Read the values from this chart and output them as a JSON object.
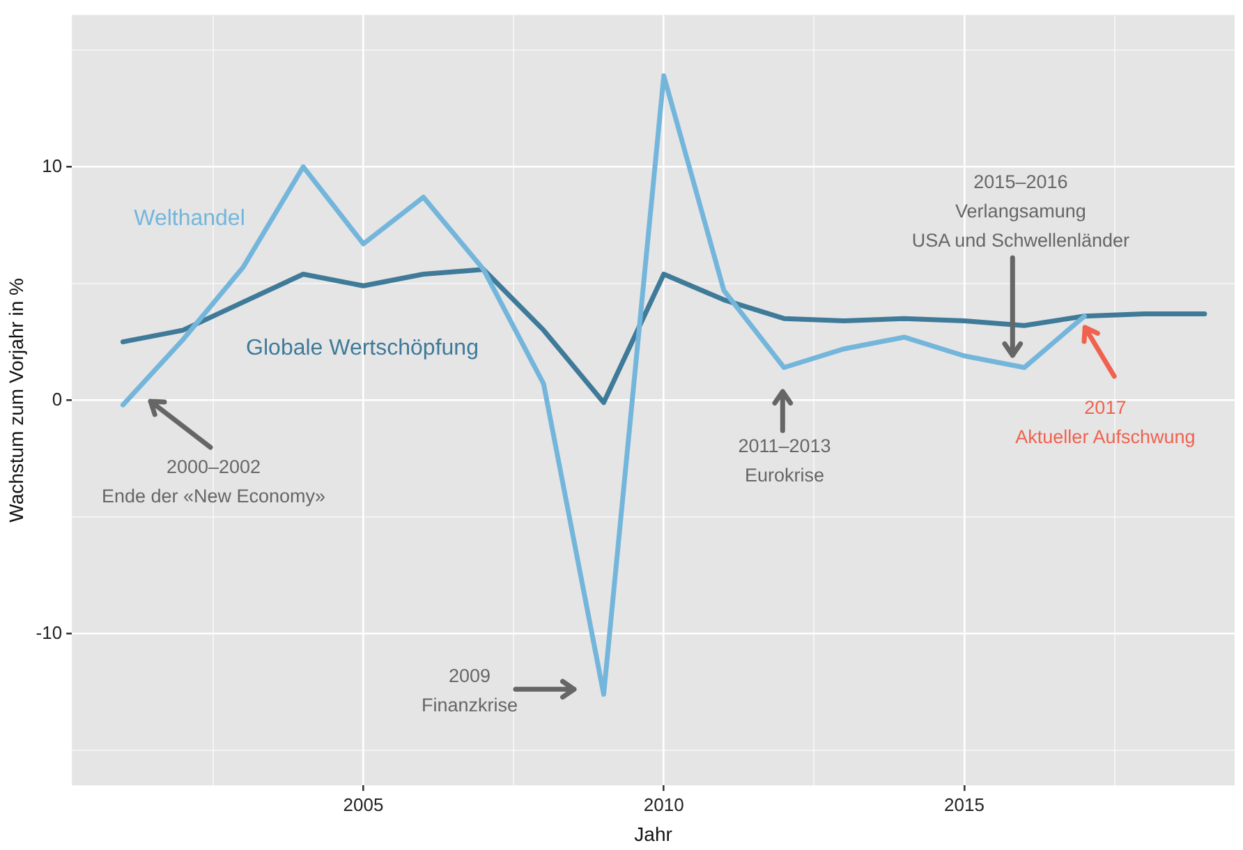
{
  "chart_data": {
    "type": "line",
    "xlabel": "Jahr",
    "ylabel": "Wachstum zum Vorjahr in %",
    "x": [
      2001,
      2002,
      2003,
      2004,
      2005,
      2006,
      2007,
      2008,
      2009,
      2010,
      2011,
      2012,
      2013,
      2014,
      2015,
      2016,
      2017,
      2018,
      2019
    ],
    "series": [
      {
        "name": "Welthandel",
        "color": "#74b6db",
        "values": [
          -0.2,
          2.6,
          5.7,
          10.0,
          6.7,
          8.7,
          5.6,
          0.7,
          -12.6,
          13.9,
          4.7,
          1.4,
          2.2,
          2.7,
          1.9,
          1.4,
          3.6,
          null,
          null
        ]
      },
      {
        "name": "Globale Wertschöpfung",
        "color": "#3f7a99",
        "values": [
          2.5,
          3.0,
          4.2,
          5.4,
          4.9,
          5.4,
          5.6,
          3.0,
          -0.1,
          5.4,
          4.3,
          3.5,
          3.4,
          3.5,
          3.4,
          3.2,
          3.6,
          3.7,
          3.7
        ]
      }
    ],
    "xlim": [
      2000.15,
      2019.5
    ],
    "ylim": [
      -16.5,
      16.5
    ],
    "xticks": [
      {
        "value": 2002.5,
        "label": null
      },
      2005,
      {
        "value": 2007.5,
        "label": null
      },
      2010,
      {
        "value": 2012.5,
        "label": null
      },
      2015,
      {
        "value": 2017.5,
        "label": null
      }
    ],
    "yticks": [
      {
        "value": -15,
        "label": null
      },
      -10,
      {
        "value": -5,
        "label": null
      },
      0,
      {
        "value": 5,
        "label": null
      },
      10,
      {
        "value": 15,
        "label": null
      }
    ],
    "grid": true,
    "legend": false,
    "marker": "none",
    "line_style": "solid",
    "annotations": [
      {
        "text": "2000–2002\nEnde der «New Economy»",
        "x": 2001,
        "y": -0.2
      },
      "2009\nFinanzkrise",
      "2011–2013\nEurokrise",
      {
        "text": "2015–2016\nVerlangsamung\nUSA und Schwellenländer",
        "x": 2015.8,
        "y": 1.9
      },
      {
        "text": "2017\nAktueller Aufschwung",
        "x": 2017,
        "y": 3.1
      }
    ]
  }
}
